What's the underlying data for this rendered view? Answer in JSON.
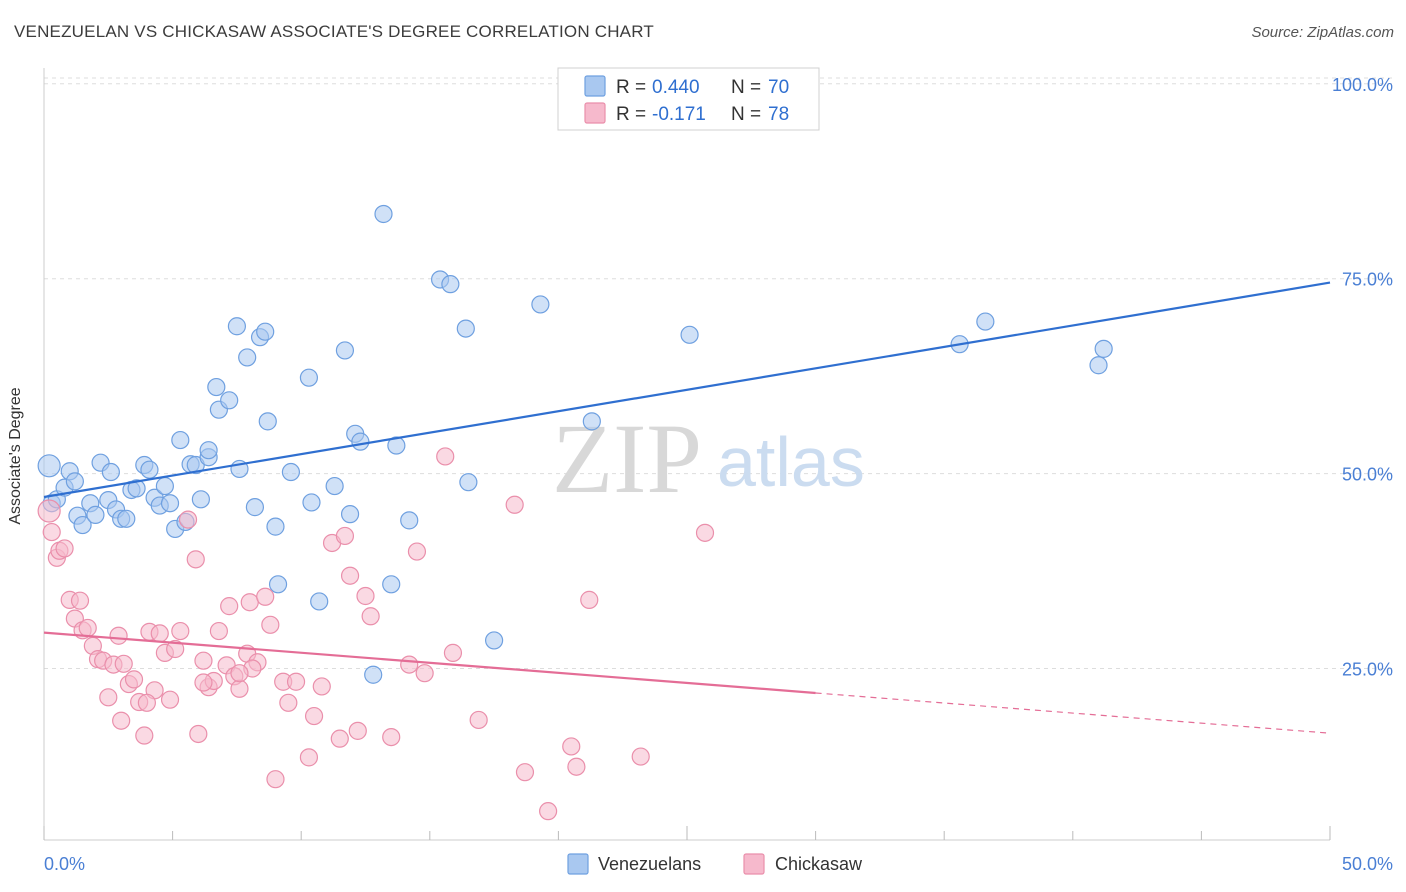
{
  "header": {
    "title": "VENEZUELAN VS CHICKASAW ASSOCIATE'S DEGREE CORRELATION CHART",
    "source": "Source: ZipAtlas.com"
  },
  "watermark": {
    "zip": "ZIP",
    "atlas": "atlas"
  },
  "colors": {
    "venezuelans_fill": "#a9c8f0",
    "venezuelans_stroke": "#6fa0e0",
    "venezuelans_line": "#2f6fd0",
    "chickasaw_fill": "#f6b9cc",
    "chickasaw_stroke": "#ea8fab",
    "chickasaw_line": "#e46d96",
    "tick_label": "#4a7fd4",
    "grid": "#dddddd"
  },
  "legend": {
    "r_label": "R =",
    "n_label": "N =",
    "venezuelans": {
      "r": "0.440",
      "n": "70"
    },
    "chickasaw": {
      "r": "-0.171",
      "n": "78"
    }
  },
  "chart_data": {
    "type": "scatter",
    "xlabel": "",
    "ylabel": "Associate's Degree",
    "xlim": [
      0,
      50
    ],
    "ylim": [
      3,
      101
    ],
    "x_tick_labels": [
      "0.0%",
      "50.0%"
    ],
    "y_ticks": [
      25,
      50,
      75,
      100
    ],
    "y_tick_labels": [
      "25.0%",
      "50.0%",
      "75.0%",
      "100.0%"
    ],
    "grid": true,
    "legend_position": "top-center",
    "series": [
      {
        "name": "Venezuelans",
        "trend": {
          "x": [
            0,
            50
          ],
          "y": [
            47.0,
            74.5
          ],
          "dashed_from": null
        },
        "points": [
          [
            0.2,
            51.0
          ],
          [
            0.3,
            46.2
          ],
          [
            0.5,
            46.7
          ],
          [
            0.8,
            48.2
          ],
          [
            1.0,
            50.3
          ],
          [
            1.2,
            49.0
          ],
          [
            1.3,
            44.6
          ],
          [
            1.5,
            43.4
          ],
          [
            1.8,
            46.2
          ],
          [
            2.0,
            44.7
          ],
          [
            2.2,
            51.4
          ],
          [
            2.5,
            46.6
          ],
          [
            2.6,
            50.2
          ],
          [
            2.8,
            45.4
          ],
          [
            3.0,
            44.2
          ],
          [
            3.2,
            44.2
          ],
          [
            3.4,
            47.9
          ],
          [
            3.6,
            48.1
          ],
          [
            3.9,
            51.1
          ],
          [
            4.1,
            50.5
          ],
          [
            4.3,
            46.9
          ],
          [
            4.5,
            45.9
          ],
          [
            4.7,
            48.4
          ],
          [
            4.9,
            46.2
          ],
          [
            5.1,
            42.9
          ],
          [
            5.3,
            54.3
          ],
          [
            5.5,
            43.8
          ],
          [
            5.7,
            51.2
          ],
          [
            5.9,
            51.1
          ],
          [
            6.1,
            46.7
          ],
          [
            6.4,
            52.1
          ],
          [
            6.4,
            53.0
          ],
          [
            6.7,
            61.1
          ],
          [
            6.8,
            58.2
          ],
          [
            7.2,
            59.4
          ],
          [
            7.5,
            68.9
          ],
          [
            7.6,
            50.6
          ],
          [
            7.9,
            64.9
          ],
          [
            8.2,
            45.7
          ],
          [
            8.4,
            67.5
          ],
          [
            8.6,
            68.2
          ],
          [
            8.7,
            56.7
          ],
          [
            9.0,
            43.2
          ],
          [
            9.1,
            35.8
          ],
          [
            9.6,
            50.2
          ],
          [
            10.3,
            62.3
          ],
          [
            10.4,
            46.3
          ],
          [
            10.7,
            33.6
          ],
          [
            11.3,
            48.4
          ],
          [
            11.7,
            65.8
          ],
          [
            11.9,
            44.8
          ],
          [
            12.1,
            55.1
          ],
          [
            12.3,
            54.1
          ],
          [
            12.8,
            24.2
          ],
          [
            13.2,
            83.3
          ],
          [
            13.5,
            35.8
          ],
          [
            13.7,
            53.6
          ],
          [
            14.2,
            44.0
          ],
          [
            15.4,
            74.9
          ],
          [
            15.8,
            74.3
          ],
          [
            16.4,
            68.6
          ],
          [
            16.5,
            48.9
          ],
          [
            17.5,
            28.6
          ],
          [
            19.3,
            71.7
          ],
          [
            21.3,
            56.7
          ],
          [
            25.1,
            67.8
          ],
          [
            35.6,
            66.6
          ],
          [
            36.6,
            69.5
          ],
          [
            41.0,
            63.9
          ],
          [
            41.2,
            66.0
          ]
        ]
      },
      {
        "name": "Chickasaw",
        "trend": {
          "x": [
            0,
            50
          ],
          "y": [
            29.6,
            16.7
          ],
          "dashed_from": 30.0
        },
        "points": [
          [
            0.2,
            45.2
          ],
          [
            0.3,
            42.5
          ],
          [
            0.5,
            39.2
          ],
          [
            0.6,
            40.1
          ],
          [
            0.8,
            40.4
          ],
          [
            1.0,
            33.8
          ],
          [
            1.2,
            31.4
          ],
          [
            1.4,
            33.7
          ],
          [
            1.5,
            29.9
          ],
          [
            1.7,
            30.2
          ],
          [
            1.9,
            27.9
          ],
          [
            2.1,
            26.2
          ],
          [
            2.3,
            26.0
          ],
          [
            2.5,
            21.3
          ],
          [
            2.7,
            25.5
          ],
          [
            2.9,
            29.2
          ],
          [
            3.0,
            18.3
          ],
          [
            3.3,
            23.0
          ],
          [
            3.5,
            23.6
          ],
          [
            3.7,
            20.7
          ],
          [
            3.9,
            16.4
          ],
          [
            4.1,
            29.7
          ],
          [
            4.3,
            22.2
          ],
          [
            4.5,
            29.5
          ],
          [
            4.7,
            27.0
          ],
          [
            4.9,
            21.0
          ],
          [
            5.1,
            27.5
          ],
          [
            5.3,
            29.8
          ],
          [
            5.6,
            44.1
          ],
          [
            5.9,
            39.0
          ],
          [
            6.0,
            16.6
          ],
          [
            6.2,
            26.0
          ],
          [
            6.4,
            22.6
          ],
          [
            6.6,
            23.4
          ],
          [
            6.8,
            29.8
          ],
          [
            7.1,
            25.4
          ],
          [
            7.2,
            33.0
          ],
          [
            7.4,
            24.0
          ],
          [
            7.6,
            22.4
          ],
          [
            7.9,
            26.9
          ],
          [
            8.0,
            33.5
          ],
          [
            8.3,
            25.8
          ],
          [
            8.6,
            34.2
          ],
          [
            8.8,
            30.6
          ],
          [
            9.0,
            10.8
          ],
          [
            9.3,
            23.3
          ],
          [
            9.5,
            20.6
          ],
          [
            9.8,
            23.3
          ],
          [
            10.3,
            13.6
          ],
          [
            10.5,
            18.9
          ],
          [
            10.8,
            22.7
          ],
          [
            11.2,
            41.1
          ],
          [
            11.5,
            16.0
          ],
          [
            11.7,
            42.0
          ],
          [
            11.9,
            36.9
          ],
          [
            12.2,
            17.0
          ],
          [
            12.5,
            34.3
          ],
          [
            12.7,
            31.7
          ],
          [
            13.5,
            16.2
          ],
          [
            14.2,
            25.5
          ],
          [
            14.5,
            40.0
          ],
          [
            14.8,
            24.4
          ],
          [
            15.6,
            52.2
          ],
          [
            15.9,
            27.0
          ],
          [
            16.9,
            18.4
          ],
          [
            18.3,
            46.0
          ],
          [
            18.7,
            11.7
          ],
          [
            19.6,
            6.7
          ],
          [
            20.5,
            15.0
          ],
          [
            20.7,
            12.4
          ],
          [
            21.2,
            33.8
          ],
          [
            23.2,
            13.7
          ],
          [
            25.7,
            42.4
          ],
          [
            8.1,
            25.0
          ],
          [
            7.6,
            24.4
          ],
          [
            6.2,
            23.2
          ],
          [
            4.0,
            20.6
          ],
          [
            3.1,
            25.6
          ]
        ]
      }
    ]
  },
  "bottom_legend": {
    "venezuelans": "Venezuelans",
    "chickasaw": "Chickasaw"
  }
}
